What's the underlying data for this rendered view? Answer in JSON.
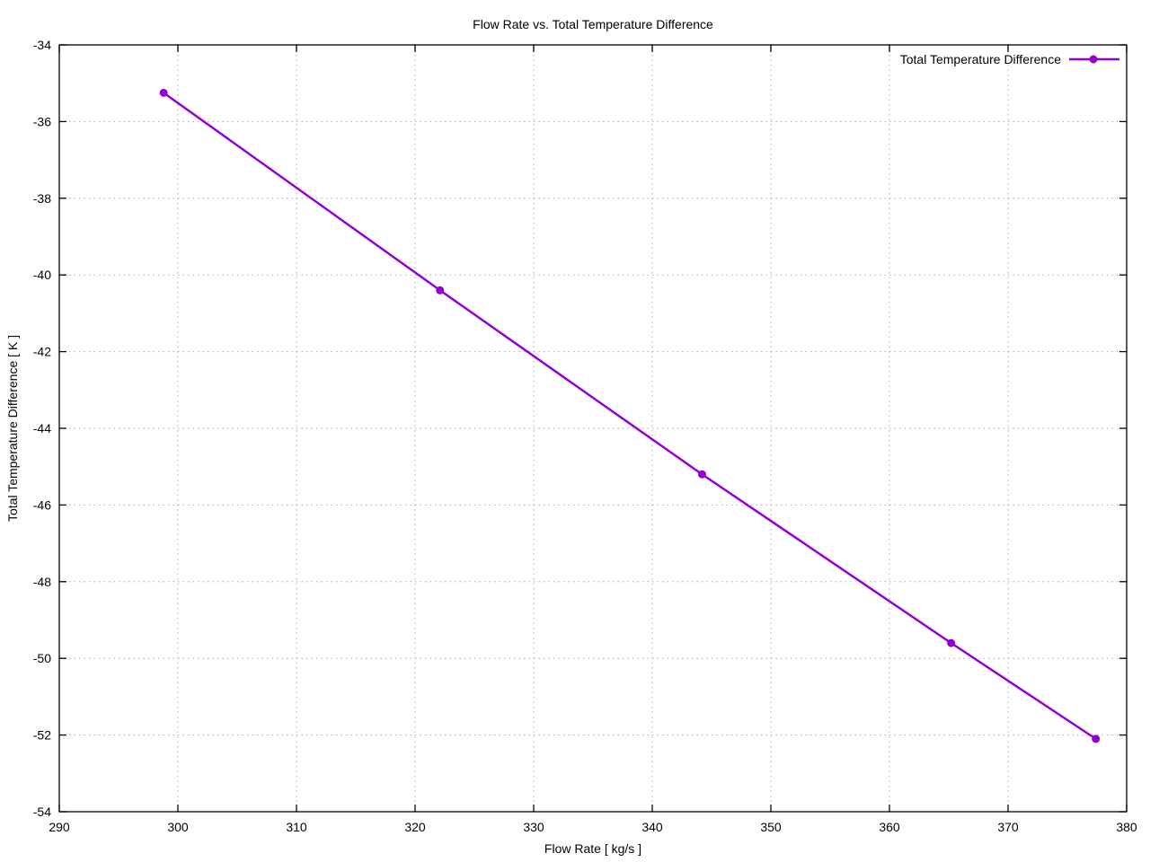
{
  "title": "Flow Rate vs. Total Temperature Difference",
  "chart_data": {
    "type": "line",
    "title": "Flow Rate vs. Total Temperature Difference",
    "xlabel": "Flow Rate [ kg/s ]",
    "ylabel": "Total Temperature Difference [ K ]",
    "xlim": [
      290,
      380
    ],
    "ylim": [
      -54,
      -34
    ],
    "x_ticks": [
      290,
      300,
      310,
      320,
      330,
      340,
      350,
      360,
      370,
      380
    ],
    "y_ticks": [
      -54,
      -52,
      -50,
      -48,
      -46,
      -44,
      -42,
      -40,
      -38,
      -36,
      -34
    ],
    "grid": true,
    "legend_position": "top-right",
    "series": [
      {
        "name": "Total Temperature Difference",
        "color": "#9400d3",
        "marker": "circle",
        "x": [
          298.8,
          322.1,
          344.2,
          365.2,
          377.4
        ],
        "y": [
          -35.25,
          -40.4,
          -45.2,
          -49.6,
          -52.1
        ]
      }
    ]
  },
  "colors": {
    "line": "#9400d3",
    "grid": "#a8a8a8",
    "axis": "#000000",
    "background": "#ffffff"
  }
}
